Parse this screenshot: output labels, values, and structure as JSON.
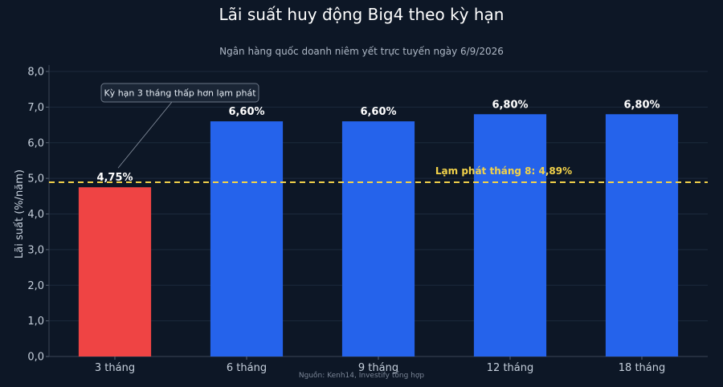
{
  "title": "Lãi suất huy động Big4 theo kỳ hạn",
  "subtitle": "Ngân hàng quốc doanh niêm yết trực tuyến ngày 6/9/2026",
  "source": "Nguồn: Kenh14, Investify tổng hợp",
  "chart_data": {
    "type": "bar",
    "categories": [
      "3 tháng",
      "6 tháng",
      "9 tháng",
      "12 tháng",
      "18 tháng"
    ],
    "values": [
      4.75,
      6.6,
      6.6,
      6.8,
      6.8
    ],
    "value_labels": [
      "4,75%",
      "6,60%",
      "6,60%",
      "6,80%",
      "6,80%"
    ],
    "bar_colors": [
      "#ef4444",
      "#2563eb",
      "#2563eb",
      "#2563eb",
      "#2563eb"
    ],
    "ylabel": "Lãi suất (%/năm)",
    "xlabel": "",
    "ylim": [
      0,
      8
    ],
    "yticks": [
      0,
      1,
      2,
      3,
      4,
      5,
      6,
      7,
      8
    ],
    "ytick_labels": [
      "0,0",
      "1,0",
      "2,0",
      "3,0",
      "4,0",
      "5,0",
      "6,0",
      "7,0",
      "8,0"
    ],
    "grid": true,
    "reference_line": {
      "value": 4.89,
      "label": "Lạm phát tháng 8: 4,89%",
      "color": "#f2d24a",
      "style": "dashed"
    },
    "annotation": {
      "text": "Kỳ hạn 3 tháng thấp hơn lạm phát",
      "target_category": "3 tháng"
    }
  }
}
